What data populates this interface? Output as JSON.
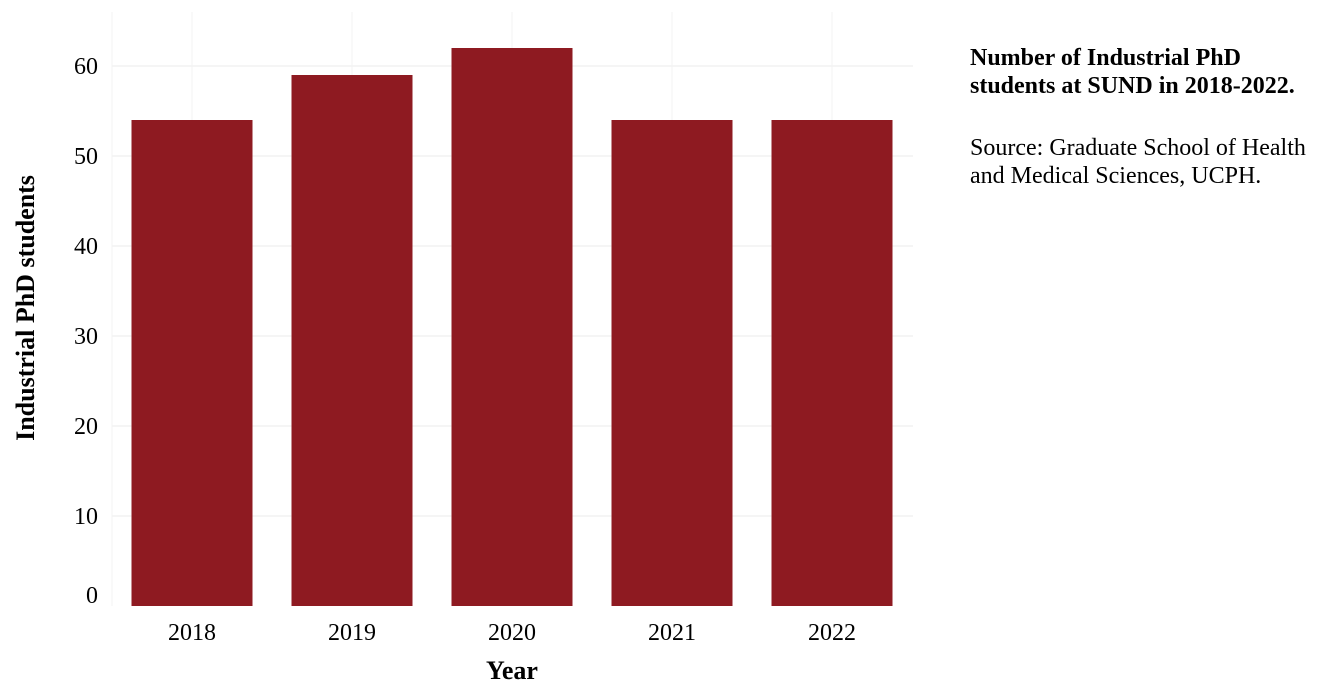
{
  "chart_data": {
    "type": "bar",
    "categories": [
      "2018",
      "2019",
      "2020",
      "2021",
      "2022"
    ],
    "values": [
      54,
      59,
      62,
      54,
      54
    ],
    "xlabel": "Year",
    "ylabel": "Industrial PhD students",
    "ylim": [
      0,
      66
    ],
    "yticks": [
      0,
      10,
      20,
      30,
      40,
      50,
      60
    ],
    "grid": true,
    "bar_color": "#8e1a21",
    "grid_color": "#ebebeb"
  },
  "side_panel": {
    "title": "Number of Industrial PhD students at SUND in 2018-2022.",
    "source": "Source: Graduate School of Health and Medical Sciences, UCPH."
  }
}
